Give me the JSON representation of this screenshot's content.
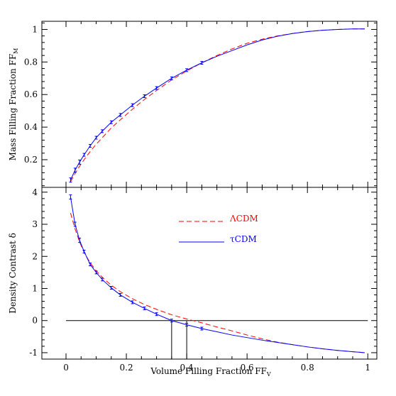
{
  "chart_data": [
    {
      "type": "line",
      "panel": "top",
      "xlabel": "",
      "ylabel": "Mass Filling Fraction FF",
      "ylabel_subscript": "M",
      "xlim": [
        -0.08,
        1.03
      ],
      "ylim": [
        0.03,
        1.05
      ],
      "x_ticks": [
        0,
        0.2,
        0.4,
        0.6,
        0.8,
        1
      ],
      "y_ticks": [
        0.2,
        0.4,
        0.6,
        0.8,
        1
      ],
      "y_tick_labels": [
        "0.2",
        "0.4",
        "0.6",
        "0.8",
        "1"
      ],
      "grid": false,
      "series": [
        {
          "name": "ΛCDM",
          "color": "#ff0000",
          "dash": "dashed",
          "x": [
            0.015,
            0.03,
            0.045,
            0.06,
            0.08,
            0.1,
            0.12,
            0.15,
            0.18,
            0.22,
            0.26,
            0.3,
            0.35,
            0.4,
            0.45,
            0.5,
            0.55,
            0.6,
            0.65,
            0.7,
            0.75,
            0.8,
            0.85,
            0.9,
            0.95,
            0.99
          ],
          "y": [
            0.065,
            0.115,
            0.16,
            0.2,
            0.25,
            0.295,
            0.335,
            0.395,
            0.445,
            0.51,
            0.57,
            0.625,
            0.69,
            0.745,
            0.795,
            0.84,
            0.88,
            0.915,
            0.94,
            0.96,
            0.975,
            0.987,
            0.995,
            1.0,
            1.003,
            1.003
          ]
        },
        {
          "name": "τCDM",
          "color": "#0000ff",
          "dash": "solid",
          "errorbars": true,
          "x": [
            0.015,
            0.03,
            0.045,
            0.06,
            0.08,
            0.1,
            0.12,
            0.15,
            0.18,
            0.22,
            0.26,
            0.3,
            0.35,
            0.4,
            0.45,
            0.5,
            0.55,
            0.6,
            0.65,
            0.7,
            0.75,
            0.8,
            0.85,
            0.9,
            0.95,
            0.99
          ],
          "y": [
            0.075,
            0.135,
            0.185,
            0.23,
            0.285,
            0.335,
            0.375,
            0.43,
            0.475,
            0.535,
            0.59,
            0.64,
            0.7,
            0.75,
            0.795,
            0.835,
            0.87,
            0.905,
            0.935,
            0.958,
            0.975,
            0.987,
            0.995,
            1.0,
            1.003,
            1.003
          ]
        }
      ]
    },
    {
      "type": "line",
      "panel": "bottom",
      "xlabel": "Volume Filling Fraction FF",
      "xlabel_subscript": "V",
      "ylabel": "Density Contrast δ",
      "xlim": [
        -0.08,
        1.03
      ],
      "ylim": [
        -1.2,
        4.15
      ],
      "x_ticks": [
        0,
        0.2,
        0.4,
        0.6,
        0.8,
        1
      ],
      "x_tick_labels": [
        "0",
        "0.2",
        "0.4",
        "0.6",
        "0.8",
        "1"
      ],
      "y_ticks": [
        -1,
        0,
        1,
        2,
        3,
        4
      ],
      "y_tick_labels": [
        "-1",
        "0",
        "1",
        "2",
        "3",
        "4"
      ],
      "grid": false,
      "legend_position": "top-center",
      "series": [
        {
          "name": "ΛCDM",
          "color": "#ff0000",
          "dash": "dashed",
          "x": [
            0.015,
            0.03,
            0.045,
            0.06,
            0.08,
            0.1,
            0.12,
            0.15,
            0.18,
            0.22,
            0.26,
            0.3,
            0.35,
            0.4,
            0.45,
            0.5,
            0.55,
            0.6,
            0.65,
            0.7,
            0.75,
            0.8,
            0.85,
            0.9,
            0.95,
            0.99
          ],
          "y": [
            3.35,
            2.85,
            2.45,
            2.12,
            1.8,
            1.55,
            1.35,
            1.1,
            0.9,
            0.68,
            0.5,
            0.35,
            0.18,
            0.05,
            -0.07,
            -0.2,
            -0.32,
            -0.45,
            -0.57,
            -0.67,
            -0.75,
            -0.82,
            -0.88,
            -0.93,
            -0.97,
            -1.0
          ]
        },
        {
          "name": "τCDM",
          "color": "#0000ff",
          "dash": "solid",
          "errorbars": true,
          "x": [
            0.015,
            0.03,
            0.045,
            0.06,
            0.08,
            0.1,
            0.12,
            0.15,
            0.18,
            0.22,
            0.26,
            0.3,
            0.35,
            0.4,
            0.45,
            0.5,
            0.55,
            0.6,
            0.65,
            0.7,
            0.75,
            0.8,
            0.85,
            0.9,
            0.95,
            0.99
          ],
          "y": [
            3.85,
            3.0,
            2.5,
            2.15,
            1.75,
            1.5,
            1.28,
            1.02,
            0.8,
            0.57,
            0.38,
            0.2,
            0.0,
            -0.13,
            -0.25,
            -0.35,
            -0.45,
            -0.53,
            -0.61,
            -0.68,
            -0.75,
            -0.82,
            -0.88,
            -0.93,
            -0.97,
            -1.0
          ]
        }
      ],
      "reference_lines": [
        {
          "type": "horizontal",
          "y": 0,
          "x_from": 0,
          "x_to": 1,
          "color": "#000000"
        },
        {
          "type": "vertical",
          "x": 0.35,
          "y_from": -1.2,
          "y_to": 0,
          "color": "#000000"
        },
        {
          "type": "vertical",
          "x": 0.4,
          "y_from": -1.2,
          "y_to": 0,
          "color": "#000000"
        }
      ]
    }
  ],
  "legend": {
    "entries": [
      {
        "label": "ΛCDM",
        "color": "#ff0000",
        "dash": "dashed"
      },
      {
        "label": "τCDM",
        "color": "#0000ff",
        "dash": "solid"
      }
    ]
  }
}
